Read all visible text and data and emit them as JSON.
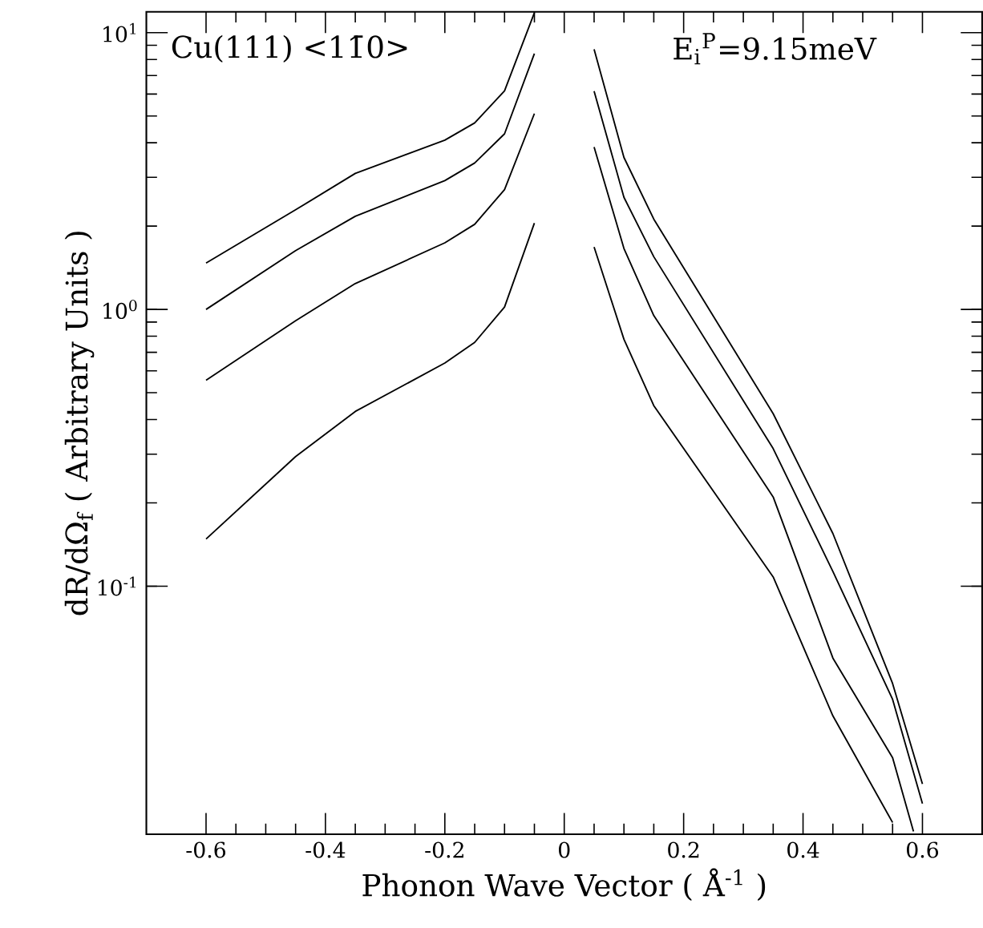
{
  "chart_data": {
    "type": "line",
    "xlabel": "Phonon Wave Vector ( Å$^{-1}$ )",
    "ylabel": "dR/dΩ$_{f}$    ( Arbitrary Units )",
    "annotations": [
      "Cu(111) <11̄0>",
      "E$_{i}$$^{P}$=9.15meV"
    ],
    "log": "y",
    "grid": false,
    "legend": false,
    "marker": "none",
    "line_style": "solid",
    "xlim": [
      -0.7,
      0.7
    ],
    "ylim": [
      0.0127,
      11.9
    ],
    "xticks": [
      -0.6,
      -0.4,
      -0.2,
      0,
      0.2,
      0.4,
      0.6
    ],
    "yticks": [
      {
        "value": 0.1,
        "label": "10$^{-1}$"
      },
      {
        "value": 1,
        "label": "10$^{0}$"
      },
      {
        "value": 10,
        "label": "10$^{1}$"
      }
    ],
    "series": [
      {
        "color": "#000000",
        "x": [
          -0.6,
          -0.45,
          -0.35,
          -0.2,
          -0.15,
          -0.1,
          -0.05
        ],
        "values": [
          1.47,
          2.29,
          3.1,
          4.09,
          4.72,
          6.16,
          11.8
        ]
      },
      {
        "color": "#000000",
        "x": [
          -0.6,
          -0.45,
          -0.35,
          -0.2,
          -0.15,
          -0.1,
          -0.05
        ],
        "values": [
          1.0,
          1.63,
          2.17,
          2.92,
          3.38,
          4.31,
          8.4
        ]
      },
      {
        "color": "#000000",
        "x": [
          -0.6,
          -0.45,
          -0.35,
          -0.2,
          -0.15,
          -0.1,
          -0.05
        ],
        "values": [
          0.555,
          0.91,
          1.24,
          1.74,
          2.03,
          2.71,
          5.1
        ]
      },
      {
        "color": "#000000",
        "x": [
          -0.6,
          -0.45,
          -0.35,
          -0.2,
          -0.15,
          -0.1,
          -0.05
        ],
        "values": [
          0.148,
          0.294,
          0.428,
          0.64,
          0.76,
          1.02,
          2.05
        ]
      },
      {
        "color": "#000000",
        "x": [
          0.05,
          0.1,
          0.15,
          0.35,
          0.45,
          0.55,
          0.6
        ],
        "values": [
          8.7,
          3.54,
          2.12,
          0.42,
          0.155,
          0.0445,
          0.0193
        ]
      },
      {
        "color": "#000000",
        "x": [
          0.05,
          0.1,
          0.15,
          0.35,
          0.45,
          0.55,
          0.6
        ],
        "values": [
          6.15,
          2.54,
          1.55,
          0.314,
          0.113,
          0.039,
          0.0164
        ]
      },
      {
        "color": "#000000",
        "x": [
          0.05,
          0.1,
          0.15,
          0.35,
          0.45,
          0.55,
          0.585
        ],
        "values": [
          3.86,
          1.66,
          0.95,
          0.21,
          0.055,
          0.024,
          0.013
        ]
      },
      {
        "color": "#000000",
        "x": [
          0.05,
          0.1,
          0.15,
          0.35,
          0.45,
          0.55
        ],
        "values": [
          1.68,
          0.78,
          0.449,
          0.108,
          0.034,
          0.014
        ]
      }
    ]
  }
}
